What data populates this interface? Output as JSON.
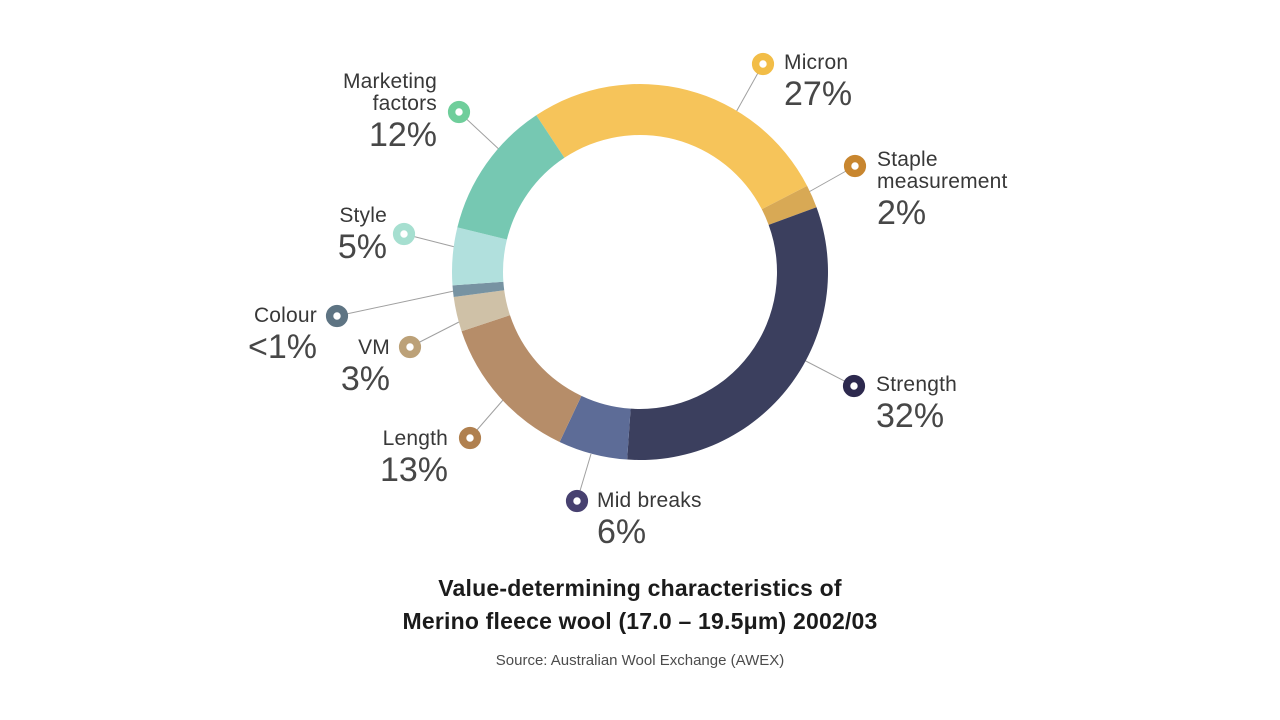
{
  "chart_data": {
    "type": "pie",
    "variant": "donut",
    "title": "Value-determining characteristics of Merino fleece wool (17.0 – 19.5μm) 2002/03",
    "title_lines": [
      "Value-determining characteristics of",
      "Merino fleece wool (17.0 – 19.5μm) 2002/03"
    ],
    "source": "Source: Australian Wool Exchange (AWEX)",
    "legend_position": "around",
    "segments": [
      {
        "label_lines": [
          "Micron"
        ],
        "display": "27%",
        "value": 27,
        "color": "#F6C45A",
        "bullet_color": "#F2BD47"
      },
      {
        "label_lines": [
          "Staple",
          "measurement"
        ],
        "display": "2%",
        "value": 2,
        "color": "#D8A955",
        "bullet_color": "#C8862F"
      },
      {
        "label_lines": [
          "Strength"
        ],
        "display": "32%",
        "value": 32,
        "color": "#3B3F5E",
        "bullet_color": "#2D294E"
      },
      {
        "label_lines": [
          "Mid breaks"
        ],
        "display": "6%",
        "value": 6,
        "color": "#5D6C97",
        "bullet_color": "#474170"
      },
      {
        "label_lines": [
          "Length"
        ],
        "display": "13%",
        "value": 13,
        "color": "#B68D69",
        "bullet_color": "#B0804F"
      },
      {
        "label_lines": [
          "VM"
        ],
        "display": "3%",
        "value": 3,
        "color": "#CFC1A7",
        "bullet_color": "#BCA178"
      },
      {
        "label_lines": [
          "Colour"
        ],
        "display": "<1%",
        "value": 1,
        "color": "#7793A2",
        "bullet_color": "#5E7483"
      },
      {
        "label_lines": [
          "Style"
        ],
        "display": "5%",
        "value": 5,
        "color": "#B1E0DD",
        "bullet_color": "#A6DFD0"
      },
      {
        "label_lines": [
          "Marketing",
          "factors"
        ],
        "display": "12%",
        "value": 12,
        "color": "#76C8B2",
        "bullet_color": "#6FCE9B"
      }
    ],
    "colors": {
      "background": "#ffffff",
      "leader_line": "#a0a0a0",
      "label_text": "#383838",
      "percent_text": "#474747",
      "title_text": "#1b1b1b",
      "source_text": "#4c4c4c"
    }
  }
}
